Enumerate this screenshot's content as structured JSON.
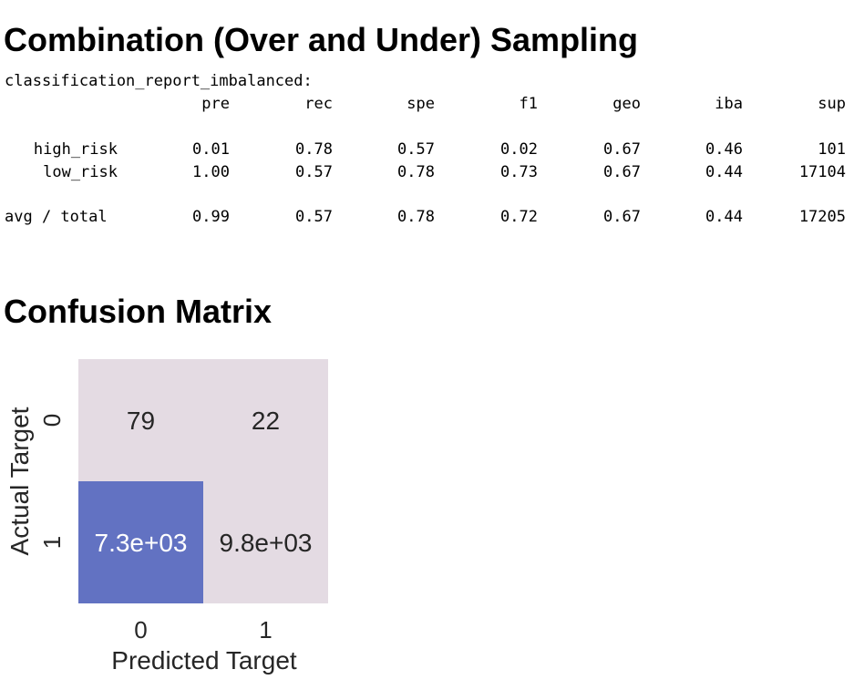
{
  "heading": "Combination (Over and Under) Sampling",
  "report": {
    "title": "classification_report_imbalanced:",
    "columns": [
      "pre",
      "rec",
      "spe",
      "f1",
      "geo",
      "iba",
      "sup"
    ],
    "rows": [
      {
        "label": "high_risk",
        "values": [
          "0.01",
          "0.78",
          "0.57",
          "0.02",
          "0.67",
          "0.46",
          "101"
        ]
      },
      {
        "label": "low_risk",
        "values": [
          "1.00",
          "0.57",
          "0.78",
          "0.73",
          "0.67",
          "0.44",
          "17104"
        ]
      }
    ],
    "total": {
      "label": "avg / total",
      "values": [
        "0.99",
        "0.57",
        "0.78",
        "0.72",
        "0.67",
        "0.44",
        "17205"
      ]
    }
  },
  "matrix_heading": "Confusion Matrix",
  "chart_data": {
    "type": "heatmap",
    "xlabel": "Predicted Target",
    "ylabel": "Actual Target",
    "x_ticks": [
      "0",
      "1"
    ],
    "y_ticks": [
      "0",
      "1"
    ],
    "values": [
      [
        79,
        22
      ],
      [
        7300,
        9800
      ]
    ],
    "annotations": [
      [
        "79",
        "22"
      ],
      [
        "7.3e+03",
        "9.8e+03"
      ]
    ],
    "colors": {
      "low": "#e4dbe3",
      "high": "#6272c2"
    }
  }
}
